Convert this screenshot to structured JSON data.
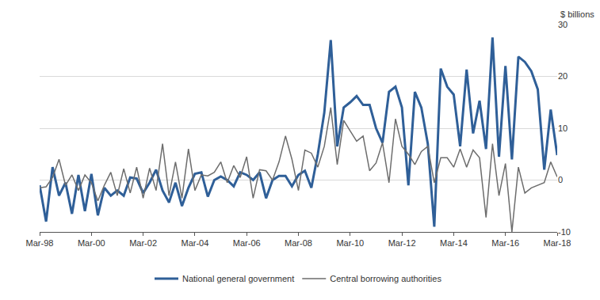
{
  "chart_data": {
    "type": "line",
    "ylabel": "$ billions",
    "categories": [
      "Mar-98",
      null,
      null,
      null,
      null,
      null,
      null,
      null,
      "Mar-00",
      null,
      null,
      null,
      null,
      null,
      null,
      null,
      "Mar-02",
      null,
      null,
      null,
      null,
      null,
      null,
      null,
      "Mar-04",
      null,
      null,
      null,
      null,
      null,
      null,
      null,
      "Mar-06",
      null,
      null,
      null,
      null,
      null,
      null,
      null,
      "Mar-08",
      null,
      null,
      null,
      null,
      null,
      null,
      null,
      "Mar-10",
      null,
      null,
      null,
      null,
      null,
      null,
      null,
      "Mar-12",
      null,
      null,
      null,
      null,
      null,
      null,
      null,
      "Mar-14",
      null,
      null,
      null,
      null,
      null,
      null,
      null,
      "Mar-16",
      null,
      null,
      null,
      null,
      null,
      null,
      null,
      "Mar-18"
    ],
    "series": [
      {
        "name": "National general government",
        "color": "#2f5f98",
        "values": [
          -1,
          -8,
          2.5,
          -3,
          -0.5,
          -6.5,
          1,
          -6,
          1.2,
          -6.8,
          -1.5,
          -3,
          -2,
          -3,
          0.5,
          0.3,
          -2.5,
          -0.5,
          2,
          -2,
          -4.3,
          -0.5,
          -5,
          -1.5,
          1.2,
          1.5,
          -3.2,
          0,
          0.7,
          0,
          -1.2,
          1.5,
          1,
          0,
          1.5,
          -3.5,
          0,
          0.8,
          0.8,
          -1.2,
          1,
          1.8,
          -1.5,
          5,
          13,
          27,
          6.5,
          14,
          15,
          16.2,
          14.5,
          14.5,
          10,
          7.2,
          17,
          18,
          14,
          -1,
          17,
          14,
          7,
          -9,
          21.5,
          18,
          16.5,
          6.5,
          21.3,
          9,
          15.3,
          6,
          27.5,
          4.5,
          22,
          4,
          23.8,
          22.8,
          21,
          17.5,
          2,
          13.6,
          4.8
        ]
      },
      {
        "name": "Central borrowing authorities",
        "color": "#6d6d6d",
        "values": [
          -1.5,
          -1.3,
          0.5,
          4,
          -1,
          1,
          -2,
          1,
          -0.5,
          -4,
          -1,
          1.5,
          -3,
          2.2,
          -2.5,
          2.5,
          -3.5,
          2.3,
          -2,
          7,
          -3,
          3.5,
          -3.5,
          6,
          -2,
          1,
          0.8,
          1.5,
          3.5,
          -0.5,
          2.8,
          0.5,
          4.5,
          -3.5,
          2,
          1.8,
          0,
          3.5,
          8.5,
          4,
          -2,
          5.8,
          5.2,
          2.5,
          6.5,
          14,
          3,
          11.5,
          9.5,
          7.5,
          8.5,
          1.8,
          3.3,
          7.2,
          -0.5,
          11.8,
          6.5,
          5,
          3,
          5.5,
          6.5,
          -0.5,
          4.3,
          4.3,
          2.5,
          6,
          2.5,
          5.8,
          4.3,
          -7.2,
          7,
          -3,
          3.2,
          -10,
          2.5,
          -2.5,
          -1.5,
          -1,
          -0.5,
          3.5,
          0.6
        ]
      }
    ],
    "ylim": [
      -10,
      30
    ],
    "yticks": [
      -10,
      0,
      10,
      20,
      30
    ],
    "grid": true,
    "legend": "bottom"
  }
}
